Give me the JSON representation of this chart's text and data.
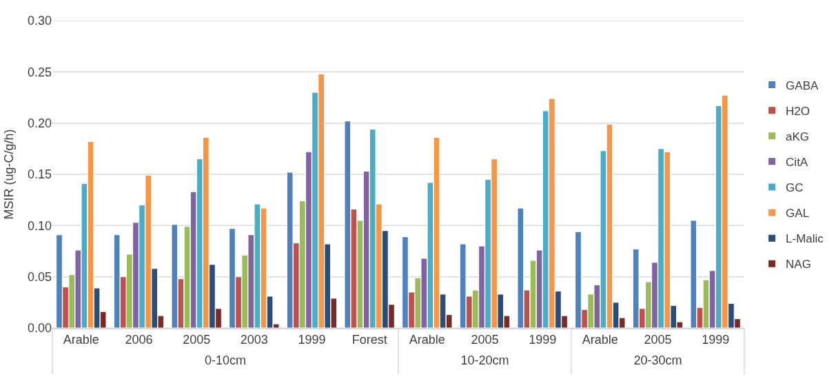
{
  "chart_data": [
    {
      "type": "bar",
      "ylabel": "MSIR (ug-C/g/h)",
      "xlabel": "0-10cm",
      "categories": [
        "Arable",
        "2006",
        "2005",
        "2003",
        "1999",
        "Forest"
      ],
      "series": [
        {
          "name": "GABA",
          "color": "#4f81bd",
          "values": [
            0.091,
            0.091,
            0.101,
            0.097,
            0.152,
            0.202
          ]
        },
        {
          "name": "H2O",
          "color": "#c0504d",
          "values": [
            0.04,
            0.05,
            0.048,
            0.05,
            0.083,
            0.116
          ]
        },
        {
          "name": "aKG",
          "color": "#9bbb59",
          "values": [
            0.052,
            0.072,
            0.099,
            0.071,
            0.124,
            0.105
          ]
        },
        {
          "name": "CitA",
          "color": "#8064a2",
          "values": [
            0.076,
            0.103,
            0.133,
            0.091,
            0.172,
            0.153
          ]
        },
        {
          "name": "GC",
          "color": "#4bacc6",
          "values": [
            0.141,
            0.12,
            0.165,
            0.121,
            0.23,
            0.194
          ]
        },
        {
          "name": "GAL",
          "color": "#f79646",
          "values": [
            0.182,
            0.149,
            0.186,
            0.117,
            0.248,
            0.121
          ]
        },
        {
          "name": "L-Malic",
          "color": "#2c4d75",
          "values": [
            0.039,
            0.058,
            0.062,
            0.031,
            0.082,
            0.095
          ]
        },
        {
          "name": "NAG",
          "color": "#772c2a",
          "values": [
            0.016,
            0.012,
            0.019,
            0.004,
            0.029,
            0.023
          ]
        }
      ],
      "ylim": [
        0,
        0.3
      ],
      "yticks": [
        {
          "value": 0,
          "label": "0.00"
        },
        {
          "value": 0.05,
          "label": "0.05"
        },
        {
          "value": 0.1,
          "label": "0.10"
        },
        {
          "value": 0.15,
          "label": "0.15"
        },
        {
          "value": 0.2,
          "label": "0.20"
        },
        {
          "value": 0.25,
          "label": "0.25"
        },
        {
          "value": 0.3,
          "label": "0.30"
        }
      ],
      "grid": "y",
      "legend": "right"
    },
    {
      "type": "bar",
      "xlabel": "10-20cm",
      "categories": [
        "Arable",
        "2005",
        "1999"
      ],
      "series": [
        {
          "name": "GABA",
          "color": "#4f81bd",
          "values": [
            0.089,
            0.082,
            0.117
          ]
        },
        {
          "name": "H2O",
          "color": "#c0504d",
          "values": [
            0.035,
            0.031,
            0.037
          ]
        },
        {
          "name": "aKG",
          "color": "#9bbb59",
          "values": [
            0.049,
            0.037,
            0.066
          ]
        },
        {
          "name": "CitA",
          "color": "#8064a2",
          "values": [
            0.068,
            0.08,
            0.076
          ]
        },
        {
          "name": "GC",
          "color": "#4bacc6",
          "values": [
            0.142,
            0.145,
            0.212
          ]
        },
        {
          "name": "GAL",
          "color": "#f79646",
          "values": [
            0.186,
            0.165,
            0.224
          ]
        },
        {
          "name": "L-Malic",
          "color": "#2c4d75",
          "values": [
            0.033,
            0.033,
            0.036
          ]
        },
        {
          "name": "NAG",
          "color": "#772c2a",
          "values": [
            0.013,
            0.012,
            0.012
          ]
        }
      ],
      "ylim": [
        0,
        0.3
      ],
      "yticks": [
        0,
        0.05,
        0.1,
        0.15,
        0.2,
        0.25,
        0.3
      ],
      "grid": "y",
      "tick_labels": "x",
      "legend": "right"
    },
    {
      "type": "bar",
      "xlabel": "20-30cm",
      "categories": [
        "Arable",
        "2005",
        "1999"
      ],
      "series": [
        {
          "name": "GABA",
          "color": "#4f81bd",
          "values": [
            0.094,
            0.077,
            0.105
          ]
        },
        {
          "name": "H2O",
          "color": "#c0504d",
          "values": [
            0.018,
            0.019,
            0.02
          ]
        },
        {
          "name": "aKG",
          "color": "#9bbb59",
          "values": [
            0.033,
            0.045,
            0.047
          ]
        },
        {
          "name": "CitA",
          "color": "#8064a2",
          "values": [
            0.042,
            0.064,
            0.056
          ]
        },
        {
          "name": "GC",
          "color": "#4bacc6",
          "values": [
            0.173,
            0.175,
            0.217
          ]
        },
        {
          "name": "GAL",
          "color": "#f79646",
          "values": [
            0.199,
            0.172,
            0.227
          ]
        },
        {
          "name": "L-Malic",
          "color": "#2c4d75",
          "values": [
            0.025,
            0.022,
            0.024
          ]
        },
        {
          "name": "NAG",
          "color": "#772c2a",
          "values": [
            0.01,
            0.006,
            0.009
          ]
        }
      ],
      "ylim": [
        0,
        0.3
      ],
      "yticks": [
        0,
        0.05,
        0.1,
        0.15,
        0.2,
        0.25,
        0.3
      ],
      "grid": "y",
      "tick_labels": "x",
      "legend": "right"
    }
  ]
}
